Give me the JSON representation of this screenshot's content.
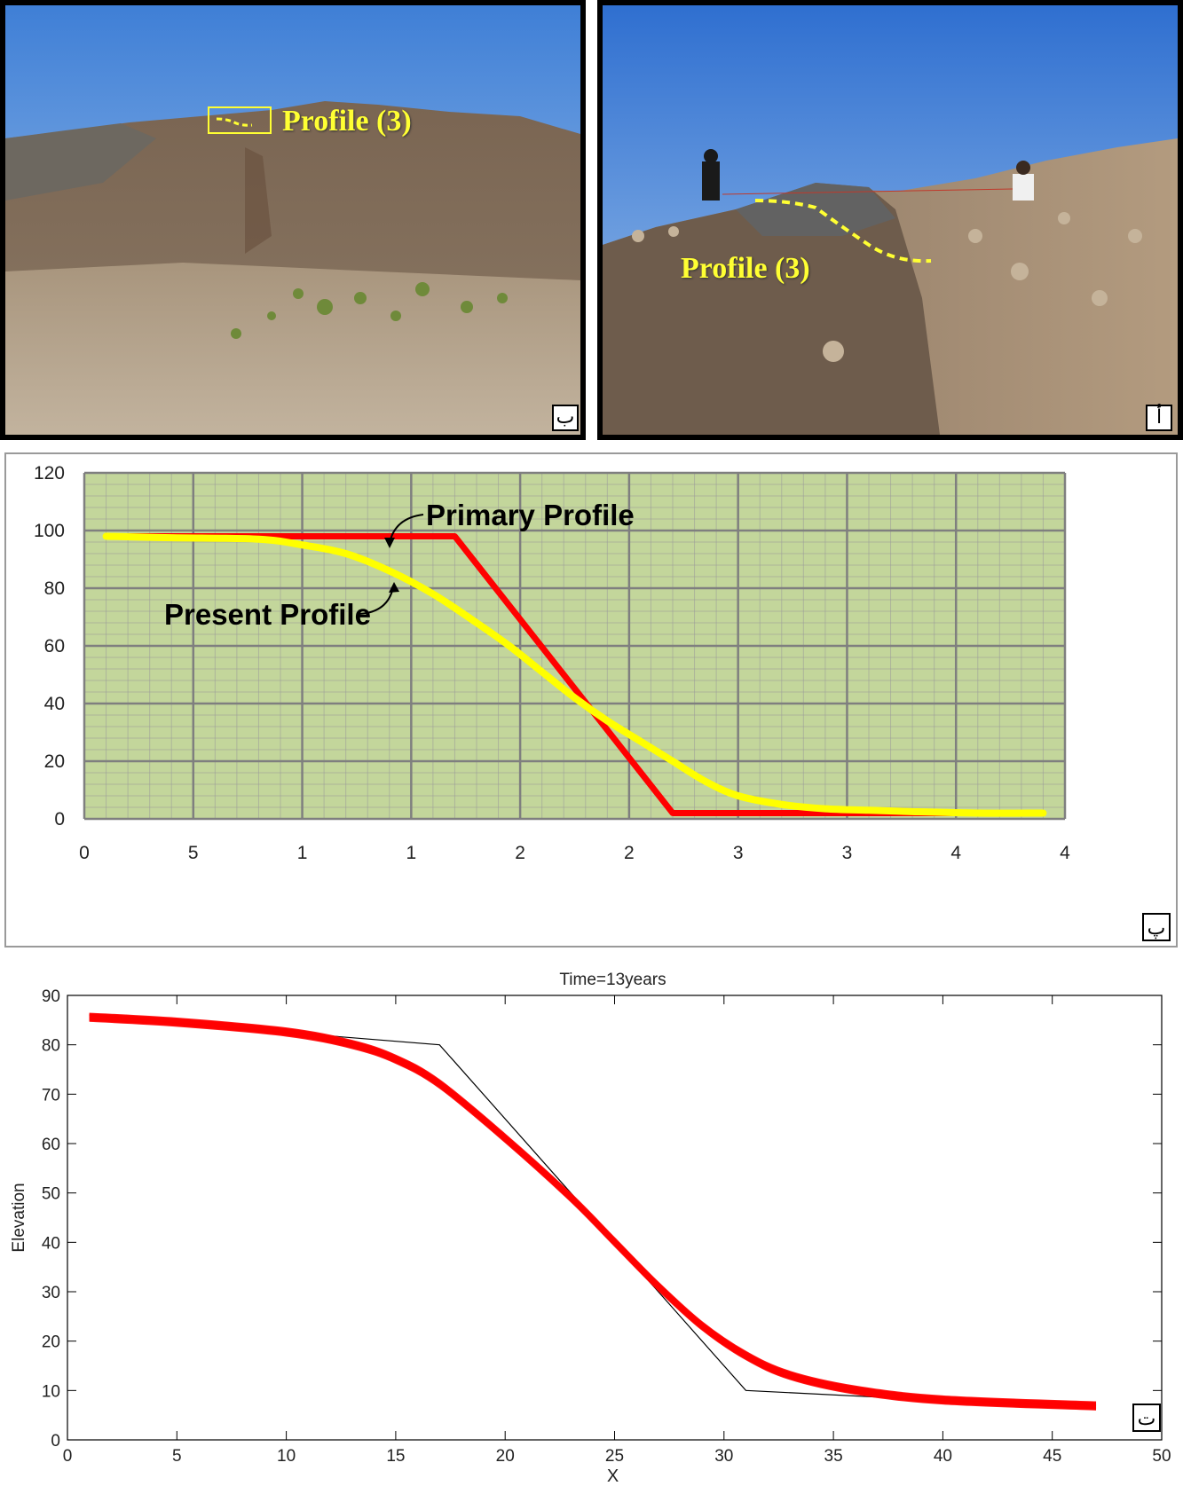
{
  "photos": [
    {
      "letter": "ب",
      "label": "Profile (3)",
      "colors": {
        "sky_top": "#3f7fd6",
        "sky_bottom": "#a9c9ec",
        "hill": "#7a6552",
        "ground": "#b6a48e",
        "profile_line": "#ffff33"
      }
    },
    {
      "letter": "أ",
      "label": "Profile (3)",
      "colors": {
        "sky_top": "#2f6fd0",
        "sky_bottom": "#9fc4ec",
        "hill": "#6e5c4c",
        "slope": "#a58f75",
        "profile_line": "#ffff33"
      }
    }
  ],
  "chart_data": [
    {
      "type": "line",
      "panel_letter": "پ",
      "title": "",
      "xlabel": "",
      "ylabel": "",
      "ylim": [
        0,
        120
      ],
      "xlim": [
        0,
        45
      ],
      "y_ticks": [
        0,
        20,
        40,
        60,
        80,
        100,
        120
      ],
      "x_tick_labels": [
        "0",
        "5",
        "1",
        "1",
        "2",
        "2",
        "3",
        "3",
        "4",
        "4"
      ],
      "grid": true,
      "background_color": "#c3d69b",
      "annotations": [
        "Primary Profile",
        "Present Profile"
      ],
      "series": [
        {
          "color": "#ff0000",
          "x": [
            1,
            13,
            17,
            27,
            32,
            44
          ],
          "y": [
            98,
            98,
            98,
            2,
            2,
            2
          ]
        },
        {
          "color": "#ffff00",
          "x": [
            1,
            4,
            8,
            10,
            12,
            14,
            16,
            18,
            19.5,
            21,
            22.5,
            24,
            25.5,
            27,
            28.5,
            30,
            32,
            34,
            36,
            38,
            41,
            44
          ],
          "y": [
            98,
            97.5,
            97,
            95,
            92,
            86,
            78,
            68,
            60,
            51,
            42,
            34,
            27,
            20,
            13,
            8,
            5,
            3.5,
            3,
            2.5,
            2,
            2
          ]
        }
      ]
    },
    {
      "type": "line",
      "panel_letter": "ت",
      "title": "Time=13years",
      "xlabel": "X",
      "ylabel": "Elevation",
      "xlim": [
        0,
        50
      ],
      "ylim": [
        0,
        90
      ],
      "x_ticks": [
        0,
        5,
        10,
        15,
        20,
        25,
        30,
        35,
        40,
        45,
        50
      ],
      "y_ticks": [
        0,
        10,
        20,
        30,
        40,
        50,
        60,
        70,
        80,
        90
      ],
      "grid": false,
      "series": [
        {
          "color": "#000000",
          "x": [
            1,
            10,
            17,
            31,
            40,
            47
          ],
          "y": [
            86,
            82.5,
            80,
            10,
            8,
            7
          ]
        },
        {
          "color": "#ff0000",
          "x": [
            1,
            5,
            10,
            13,
            15,
            17,
            20,
            23,
            25,
            27,
            29,
            31,
            33,
            36,
            40,
            47
          ],
          "y": [
            85.5,
            84.5,
            82.5,
            80,
            77,
            72,
            61,
            49,
            40,
            31,
            23,
            17,
            13,
            10,
            8,
            6.8
          ]
        }
      ]
    }
  ]
}
